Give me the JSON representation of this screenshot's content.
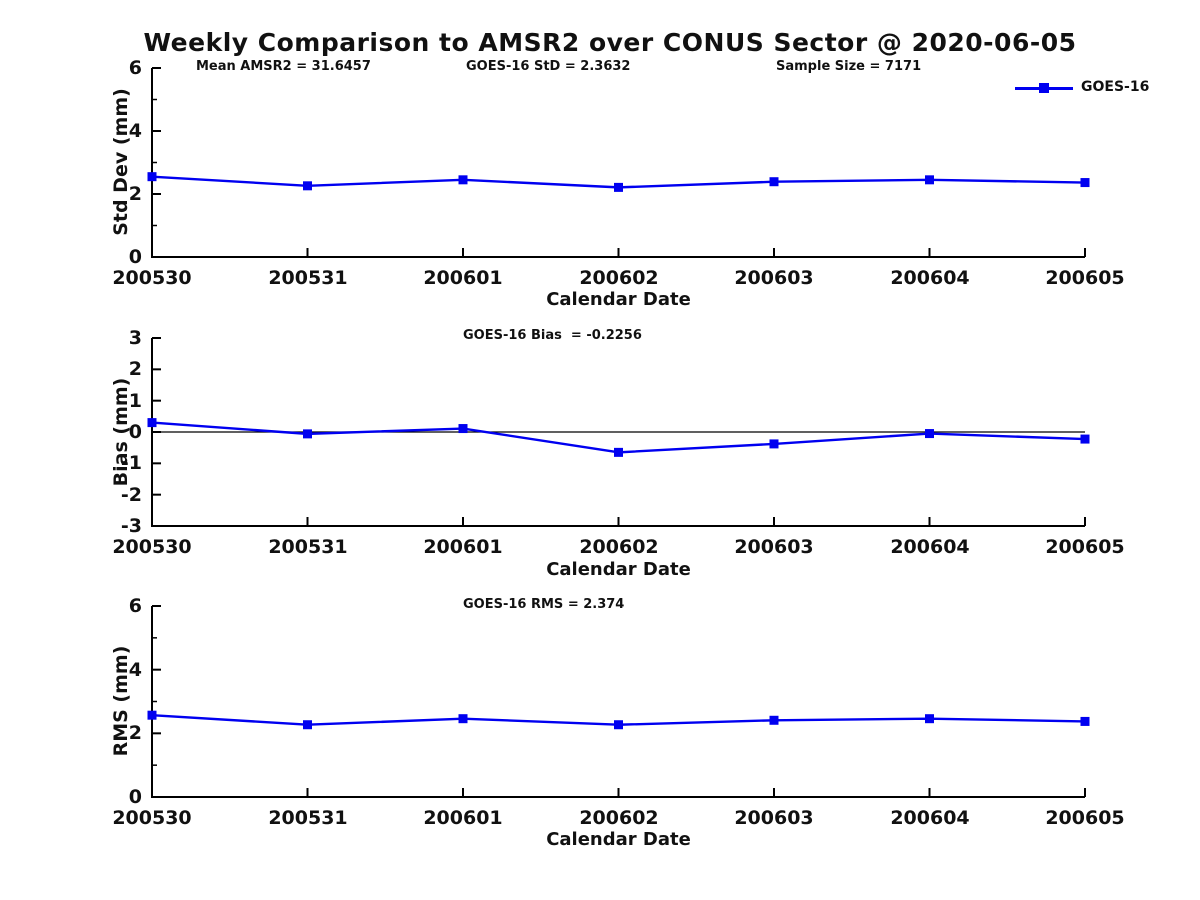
{
  "title": "Weekly Comparison to AMSR2 over CONUS Sector @ 2020-06-05",
  "header_annotations": {
    "mean_amsr2": "Mean AMSR2 = 31.6457",
    "goes16_std": "GOES-16 StD = 2.3632",
    "sample_size": "Sample Size = 7171"
  },
  "legend": {
    "label": "GOES-16",
    "color": "#0000f0",
    "position": "top-right"
  },
  "xlabel": "Calendar Date",
  "colors": {
    "series": "#0000f0",
    "axis": "#000000",
    "background": "#ffffff"
  },
  "chart_data": [
    {
      "type": "line",
      "name": "std-dev-panel",
      "title": "",
      "annotation": "",
      "xlabel": "Calendar Date",
      "ylabel": "Std Dev (mm)",
      "ylim": [
        0,
        6
      ],
      "yticks": [
        0,
        2,
        4,
        6
      ],
      "yminorticks": [
        1,
        3,
        5
      ],
      "zero_line": false,
      "grid": false,
      "categories": [
        "200530",
        "200531",
        "200601",
        "200602",
        "200603",
        "200604",
        "200605"
      ],
      "series": [
        {
          "name": "GOES-16",
          "color": "#0000f0",
          "marker": "square",
          "values": [
            2.55,
            2.26,
            2.45,
            2.21,
            2.39,
            2.45,
            2.3632
          ]
        }
      ]
    },
    {
      "type": "line",
      "name": "bias-panel",
      "title": "",
      "annotation": "GOES-16 Bias  = -0.2256",
      "xlabel": "Calendar Date",
      "ylabel": "Bias (mm)",
      "ylim": [
        -3,
        3
      ],
      "yticks": [
        -3,
        -2,
        -1,
        0,
        1,
        2,
        3
      ],
      "yminorticks": [],
      "zero_line": true,
      "grid": false,
      "categories": [
        "200530",
        "200531",
        "200601",
        "200602",
        "200603",
        "200604",
        "200605"
      ],
      "series": [
        {
          "name": "GOES-16",
          "color": "#0000f0",
          "marker": "square",
          "values": [
            0.3,
            -0.06,
            0.11,
            -0.65,
            -0.38,
            -0.05,
            -0.2256
          ]
        }
      ]
    },
    {
      "type": "line",
      "name": "rms-panel",
      "title": "",
      "annotation": "GOES-16 RMS = 2.374",
      "xlabel": "Calendar Date",
      "ylabel": "RMS (mm)",
      "ylim": [
        0,
        6
      ],
      "yticks": [
        0,
        2,
        4,
        6
      ],
      "yminorticks": [
        1,
        3,
        5
      ],
      "zero_line": false,
      "grid": false,
      "categories": [
        "200530",
        "200531",
        "200601",
        "200602",
        "200603",
        "200604",
        "200605"
      ],
      "series": [
        {
          "name": "GOES-16",
          "color": "#0000f0",
          "marker": "square",
          "values": [
            2.57,
            2.27,
            2.46,
            2.27,
            2.41,
            2.46,
            2.374
          ]
        }
      ]
    }
  ]
}
